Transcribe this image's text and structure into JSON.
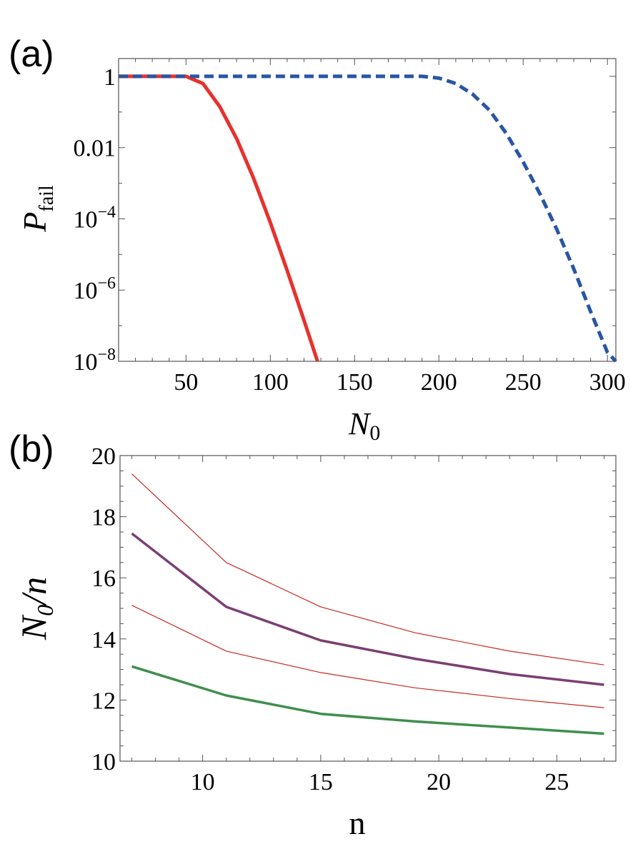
{
  "chart_data": [
    {
      "type": "line",
      "panel_label": "(a)",
      "xlabel": "N",
      "xlabel_sub": "0",
      "ylabel": "P",
      "ylabel_sub": "fail",
      "yscale": "log",
      "xlim": [
        10,
        305
      ],
      "ylim_exp": [
        -8,
        0.5
      ],
      "x_ticks": [
        50,
        100,
        150,
        200,
        250,
        300
      ],
      "y_ticks": [
        {
          "exp": 0,
          "label": "1"
        },
        {
          "exp": -2,
          "label": "0.01"
        },
        {
          "exp": -4,
          "base": "10",
          "sup": "−4"
        },
        {
          "exp": -6,
          "base": "10",
          "sup": "−6"
        },
        {
          "exp": -8,
          "base": "10",
          "sup": "−8"
        }
      ],
      "series": [
        {
          "name": "red-solid",
          "color": "#e8312c",
          "style": "solid",
          "x": [
            10,
            50,
            60,
            70,
            80,
            90,
            100,
            110,
            120,
            128
          ],
          "log10_y": [
            0,
            0,
            -0.2,
            -0.85,
            -1.75,
            -2.85,
            -4.1,
            -5.45,
            -6.85,
            -8.0
          ]
        },
        {
          "name": "blue-dashed",
          "color": "#2856a3",
          "style": "dashed",
          "x": [
            10,
            100,
            190,
            200,
            210,
            220,
            230,
            240,
            250,
            260,
            270,
            280,
            290,
            300,
            305
          ],
          "log10_y": [
            0,
            0,
            0,
            -0.05,
            -0.2,
            -0.5,
            -0.95,
            -1.6,
            -2.4,
            -3.3,
            -4.3,
            -5.4,
            -6.6,
            -7.75,
            -8.0
          ]
        }
      ]
    },
    {
      "type": "line",
      "panel_label": "(b)",
      "xlabel": "n",
      "ylabel": "N",
      "ylabel_sub": "0",
      "ylabel_tail": "/n",
      "xlim": [
        6.5,
        27.5
      ],
      "ylim": [
        10,
        20
      ],
      "x_ticks": [
        10,
        15,
        20,
        25
      ],
      "y_ticks": [
        10,
        12,
        14,
        16,
        18,
        20
      ],
      "series": [
        {
          "name": "upper-thin-red",
          "color": "#c62b22",
          "width": 1.2,
          "x": [
            7,
            11,
            15,
            19,
            23,
            27
          ],
          "values": [
            19.4,
            16.5,
            15.05,
            14.2,
            13.6,
            13.15
          ]
        },
        {
          "name": "purple-thick",
          "color": "#7b3f73",
          "width": 3.5,
          "x": [
            7,
            11,
            15,
            19,
            23,
            27
          ],
          "values": [
            17.45,
            15.05,
            13.95,
            13.35,
            12.85,
            12.5
          ]
        },
        {
          "name": "lower-thin-red",
          "color": "#c62b22",
          "width": 1.2,
          "x": [
            7,
            11,
            15,
            19,
            23,
            27
          ],
          "values": [
            15.1,
            13.6,
            12.9,
            12.4,
            12.05,
            11.75
          ]
        },
        {
          "name": "green-thick",
          "color": "#3f8f4d",
          "width": 3.5,
          "x": [
            7,
            11,
            15,
            19,
            23,
            27
          ],
          "values": [
            13.1,
            12.15,
            11.55,
            11.3,
            11.1,
            10.9
          ]
        }
      ]
    }
  ]
}
